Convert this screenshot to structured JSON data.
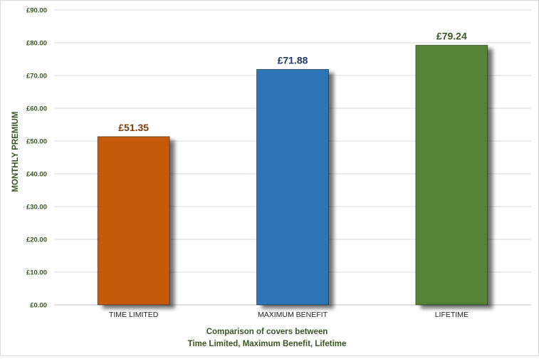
{
  "chart_data": {
    "type": "bar",
    "categories": [
      "TIME LIMITED",
      "MAXIMUM BENEFIT",
      "LIFETIME"
    ],
    "values": [
      51.35,
      71.88,
      79.24
    ],
    "value_labels": [
      "£51.35",
      "£71.88",
      "£79.24"
    ],
    "bar_colors": [
      "#c55a11",
      "#2e75b6",
      "#548235"
    ],
    "label_colors": [
      "#843c0c",
      "#1f3864",
      "#375623"
    ],
    "ylabel": "MONTHLY PREMIUM",
    "xlabel_lines": [
      "Comparison of covers between",
      "Time Limited, Maximum Benefit, Lifetime"
    ],
    "ylim": [
      0,
      90
    ],
    "yticks": [
      0,
      10,
      20,
      30,
      40,
      50,
      60,
      70,
      80,
      90
    ],
    "ytick_labels": [
      "£0.00",
      "£10.00",
      "£20.00",
      "£30.00",
      "£40.00",
      "£50.00",
      "£60.00",
      "£70.00",
      "£80.00",
      "£90.00"
    ],
    "grid": true,
    "legend": "none"
  }
}
